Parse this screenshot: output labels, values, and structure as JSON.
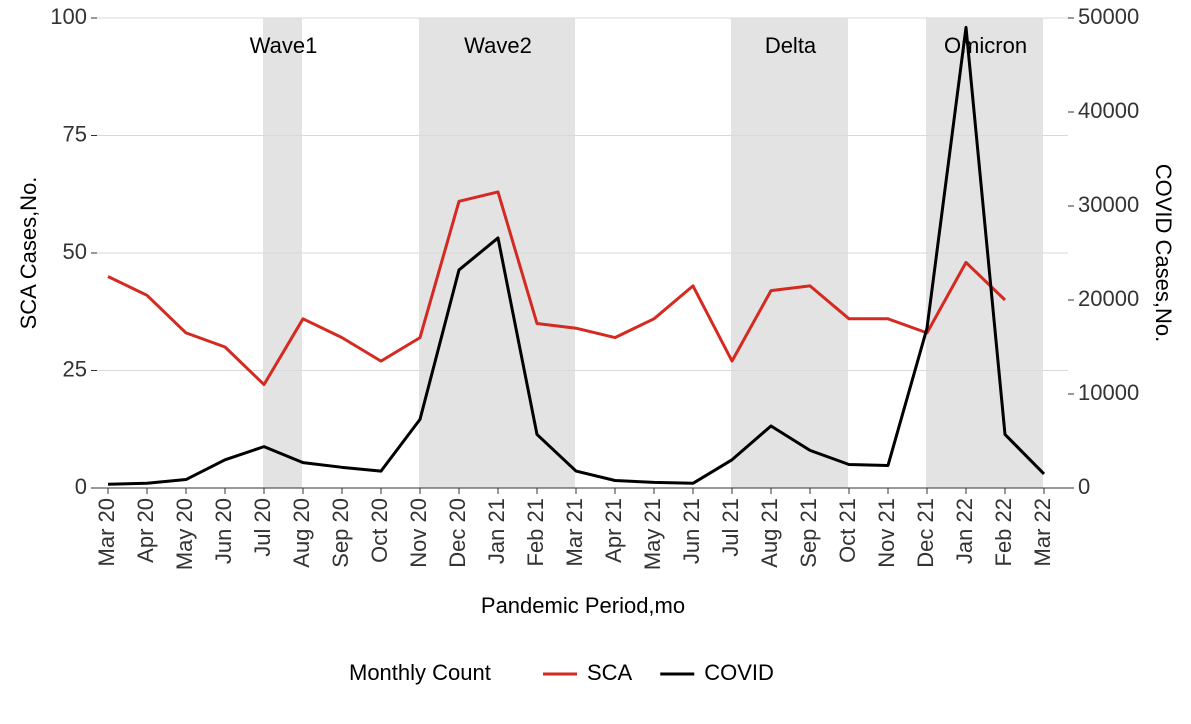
{
  "chart_data": {
    "type": "line",
    "categories": [
      "Mar 20",
      "Apr 20",
      "May 20",
      "Jun 20",
      "Jul 20",
      "Aug 20",
      "Sep 20",
      "Oct 20",
      "Nov 20",
      "Dec 20",
      "Jan 21",
      "Feb 21",
      "Mar 21",
      "Apr 21",
      "May 21",
      "Jun 21",
      "Jul 21",
      "Aug 21",
      "Sep 21",
      "Oct 21",
      "Nov 21",
      "Dec 21",
      "Jan 22",
      "Feb 22",
      "Mar 22"
    ],
    "series": [
      {
        "name": "SCA",
        "color": "#d42a22",
        "values": [
          45,
          41,
          33,
          30,
          22,
          36,
          32,
          27,
          32,
          61,
          63,
          35,
          34,
          32,
          36,
          43,
          27,
          42,
          43,
          36,
          36,
          33,
          48,
          40,
          null
        ]
      },
      {
        "name": "COVID",
        "color": "#000000",
        "axis": "y2",
        "values": [
          400,
          500,
          900,
          3000,
          4400,
          2700,
          2200,
          1800,
          7300,
          23200,
          26600,
          5700,
          1800,
          800,
          600,
          500,
          3000,
          6600,
          4000,
          2500,
          2400,
          17000,
          49000,
          5700,
          1500
        ]
      }
    ],
    "ylim": [
      0,
      100
    ],
    "yticks": [
      0,
      25,
      50,
      75,
      100
    ],
    "y2lim": [
      0,
      50000
    ],
    "y2ticks": [
      0,
      10000,
      20000,
      30000,
      40000,
      50000
    ],
    "ylabel": "SCA Cases,No.",
    "y2label": "COVID Cases,No.",
    "xlabel": "Pandemic Period,mo",
    "legend_title": "Monthly Count",
    "grid": true,
    "annotations": [
      {
        "label": "Wave1",
        "start": "Jul 20",
        "end": "Aug 20"
      },
      {
        "label": "Wave2",
        "start": "Nov 20",
        "end": "Mar 21"
      },
      {
        "label": "Delta",
        "start": "Jul 21",
        "end": "Oct 21"
      },
      {
        "label": "Omicron",
        "start": "Dec 21",
        "end": "Mar 22"
      }
    ]
  }
}
